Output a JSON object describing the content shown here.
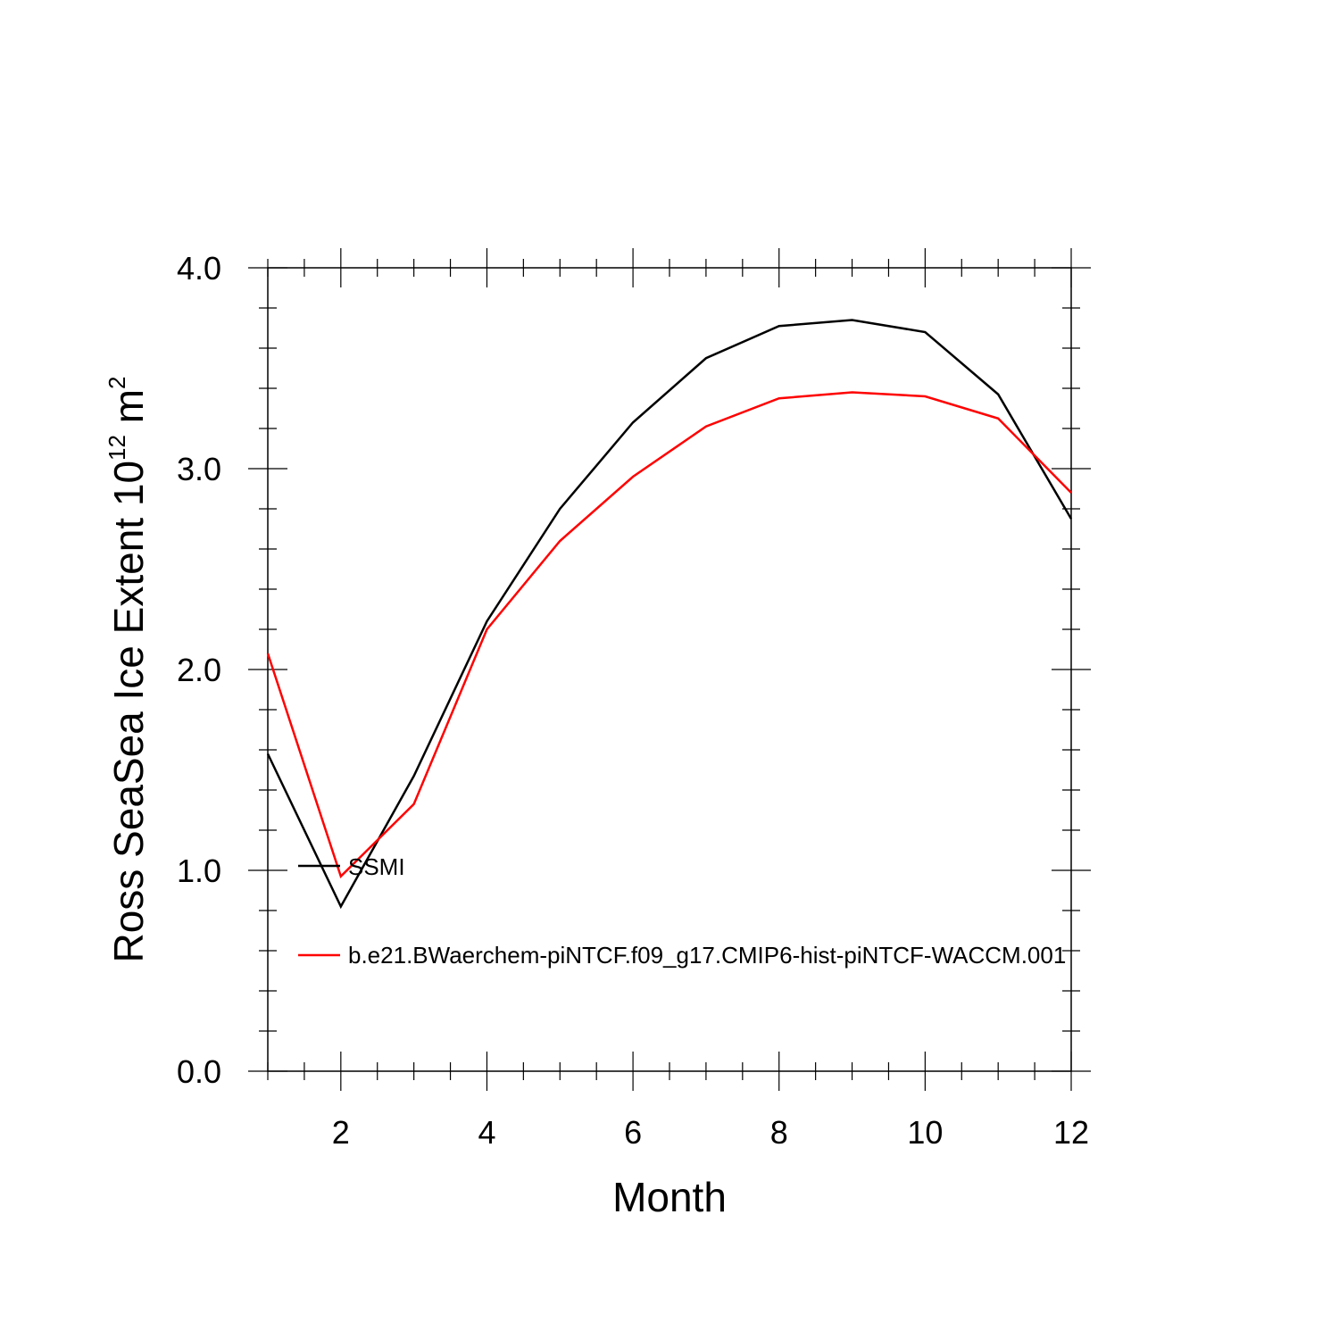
{
  "chart_data": {
    "type": "line",
    "xlabel": "Month",
    "ylabel": {
      "prefix": "Ross SeaSea Ice Extent 10",
      "exponent": "12",
      "unit": " m",
      "unit_exponent": "2"
    },
    "xlim": [
      1,
      12
    ],
    "ylim": [
      0,
      4
    ],
    "x_ticks": [
      2,
      4,
      6,
      8,
      10,
      12
    ],
    "x_tick_labels": [
      "2",
      "4",
      "6",
      "8",
      "10",
      "12"
    ],
    "y_ticks": [
      0,
      1,
      2,
      3,
      4
    ],
    "y_tick_labels": [
      "0.0",
      "1.0",
      "2.0",
      "3.0",
      "4.0"
    ],
    "grid": false,
    "legend_position": "left, inside plot",
    "x": [
      1,
      2,
      3,
      4,
      5,
      6,
      7,
      8,
      9,
      10,
      11,
      12
    ],
    "series": [
      {
        "name": "SSMI",
        "color": "#000000",
        "values": [
          1.58,
          0.82,
          1.47,
          2.24,
          2.8,
          3.23,
          3.55,
          3.71,
          3.74,
          3.68,
          3.37,
          2.75
        ]
      },
      {
        "name": "b.e21.BWaerchem-piNTCF.f09_g17.CMIP6-hist-piNTCF-WACCM.001",
        "color": "#ff0000",
        "values": [
          2.08,
          0.97,
          1.33,
          2.2,
          2.64,
          2.96,
          3.21,
          3.35,
          3.38,
          3.36,
          3.25,
          2.88
        ]
      }
    ]
  }
}
